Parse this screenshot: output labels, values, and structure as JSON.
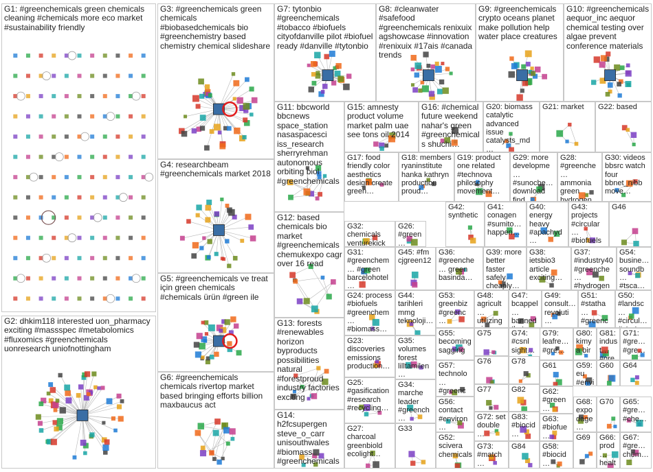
{
  "groups": [
    {
      "id": "G1",
      "text": "G1: #greenchemicals green chemicals cleaning #chemicals more eco market #sustainability friendly",
      "layout": "grid"
    },
    {
      "id": "G2",
      "text": "G2: dhkim118 interested uon_pharmacy exciting #massspec #metabolomics #fluxomics #greenchemicals uonresearch uniofnottingham",
      "layout": "hub"
    },
    {
      "id": "G3",
      "text": "G3: #greenchemicals green chemicals #biobasedchemicals bio #greenchemistry based chemistry chemical slideshare",
      "layout": "hub"
    },
    {
      "id": "G4",
      "text": "G4: researchbeam #greenchemicals market 2018",
      "layout": "hub"
    },
    {
      "id": "G5",
      "text": "G5: #greenchemicals ve treat için green chemicals #chemicals ürün #green ile",
      "layout": "hub"
    },
    {
      "id": "G6",
      "text": "G6: #greenchemicals chemicals rivertop market based bringing efforts billion maxbaucus act",
      "layout": "scatter"
    },
    {
      "id": "G7",
      "text": "G7: tytonbio #greenchemicals #tobacco #biofuels cityofdanville pilot #biofuel ready #danville #tytonbio",
      "layout": "hub"
    },
    {
      "id": "G8",
      "text": "G8: #cleanwater #safefood #greenchemicals renixuix agshowcase #innovation #renixuix #17ais #canada trends",
      "layout": "hub"
    },
    {
      "id": "G9",
      "text": "G9: #greenchemicals crypto oceans planet make pollution help water place creatures",
      "layout": "hub"
    },
    {
      "id": "G10",
      "text": "G10: #greenchemicals aequor_inc aequor chemical testing over algae prevent conference materials",
      "layout": "hub"
    },
    {
      "id": "G11",
      "text": "G11: bbcworld bbcnews space_station nasaspacesci iss_research sherryrehman autonomous orbiting biol #greenchemicals",
      "layout": "scatter"
    },
    {
      "id": "G12",
      "text": "G12: based chemicals bio market #greenchemicals chemukexpo cagr over 16 read",
      "layout": "scatter"
    },
    {
      "id": "G13",
      "text": "G13: forests #renewables horizon byproducts possibilities natural #forestproud industry factories exciting",
      "layout": "scatter"
    },
    {
      "id": "G14",
      "text": "G14: h2fcsupergen steve_o_carr unisouthwales #biomass #greenchemicals…",
      "layout": "scatter"
    },
    {
      "id": "G15",
      "text": "G15: amnesty product volume market palm uae see tons oil 2014",
      "layout": "scatter"
    },
    {
      "id": "G16",
      "text": "G16: #chemical future weekend nahar's green #greenchemicals shuchi…",
      "layout": "scatter"
    },
    {
      "id": "G17",
      "text": "G17: food friendly color aesthetics design create green…",
      "layout": "scatter"
    },
    {
      "id": "G18",
      "text": "G18: members ryaninstitute hanka kathryn production proud…",
      "layout": "scatter"
    },
    {
      "id": "G19",
      "text": "G19: product one related #technova philosophy movement…",
      "layout": "scatter"
    },
    {
      "id": "G20",
      "text": "G20: biomass catalytic advanced issue catalysts_md…",
      "layout": "scatter"
    },
    {
      "id": "G21",
      "text": "G21: market",
      "layout": "scatter"
    },
    {
      "id": "G22",
      "text": "G22: based",
      "layout": "scatter"
    },
    {
      "id": "G23",
      "text": "G23: discoveries emissions production…",
      "layout": "scatter"
    },
    {
      "id": "G24",
      "text": "G24: process #biofuels #greenchem… #biomass…",
      "layout": "scatter"
    },
    {
      "id": "G25",
      "text": "G25: #gasification #research #recycling…",
      "layout": "scatter"
    },
    {
      "id": "G26",
      "text": "G26: #green… greenseal thanks…",
      "layout": "scatter"
    },
    {
      "id": "G27",
      "text": "G27: charcoal greenbiold ecolight…",
      "layout": "scatter"
    },
    {
      "id": "G28",
      "text": "G28: #greenche… ammonia green hydrogen…",
      "layout": "scatter"
    },
    {
      "id": "G29",
      "text": "G29: more developme… #sunoche… download find…",
      "layout": "scatter"
    },
    {
      "id": "G30",
      "text": "G30: videos bbsrc watch four bbnet_nibb move…",
      "layout": "scatter"
    },
    {
      "id": "G31",
      "text": "G31: #greenchem… #green barcelohotel…",
      "layout": "scatter"
    },
    {
      "id": "G32",
      "text": "G32: chemicals venturekick",
      "layout": "scatter"
    },
    {
      "id": "G33",
      "text": "G33",
      "layout": "scatter"
    },
    {
      "id": "G34",
      "text": "G34: marche leader #greench…",
      "layout": "scatter"
    },
    {
      "id": "G35",
      "text": "G35: volumes forest lilltamilen…",
      "layout": "scatter"
    },
    {
      "id": "G36",
      "text": "G36: #greenche… green basinda…",
      "layout": "scatter"
    },
    {
      "id": "G37",
      "text": "G37: #industry40 #greenche… #hydrogen…",
      "layout": "scatter"
    },
    {
      "id": "G38",
      "text": "G38: ietsbio3 article exciting…",
      "layout": "scatter"
    },
    {
      "id": "G39",
      "text": "G39: more better faster safely cheaply…",
      "layout": "scatter"
    },
    {
      "id": "G40",
      "text": "G40: energy heavy #apachyd…",
      "layout": "scatter"
    },
    {
      "id": "G41",
      "text": "G41: conagen #sumito… happen…",
      "layout": "scatter"
    },
    {
      "id": "G42",
      "text": "G42: synthetic",
      "layout": "scatter"
    },
    {
      "id": "G43",
      "text": "G43: projects #circular… #biofuels…",
      "layout": "scatter"
    },
    {
      "id": "G44",
      "text": "G44: tarihleri mmg teknoloji…",
      "layout": "scatter"
    },
    {
      "id": "G45",
      "text": "G45: #fm cjgreen12",
      "layout": "scatter"
    },
    {
      "id": "G46",
      "text": "G46",
      "layout": "scatter"
    },
    {
      "id": "G47",
      "text": "G47: bcappel… banned thats…",
      "layout": "scatter"
    },
    {
      "id": "G48",
      "text": "G48: agricult… utilizing aim…",
      "layout": "scatter"
    },
    {
      "id": "G49",
      "text": "G49: consult… revoluti… prescou…",
      "layout": "scatter"
    },
    {
      "id": "G50",
      "text": "G50: #landsc… #circul… #startu…",
      "layout": "scatter"
    },
    {
      "id": "G51",
      "text": "G51: #statha… #greenc… #greenc…",
      "layout": "scatter"
    },
    {
      "id": "G52",
      "text": "G52: scivera chemicals",
      "layout": "scatter"
    },
    {
      "id": "G53",
      "text": "G53: greenbiz #greenc…",
      "layout": "scatter"
    },
    {
      "id": "G54",
      "text": "G54: busine… soundb… #tsca…",
      "layout": "scatter"
    },
    {
      "id": "G55",
      "text": "G55: becoming sagging…",
      "layout": "scatter"
    },
    {
      "id": "G56",
      "text": "G56: contact #environ…",
      "layout": "scatter"
    },
    {
      "id": "G57",
      "text": "G57: technolo… #greenc…",
      "layout": "scatter"
    },
    {
      "id": "G58",
      "text": "G58: #biocid…",
      "layout": "scatter"
    },
    {
      "id": "G59",
      "text": "G59: eu #envi…",
      "layout": "scatter"
    },
    {
      "id": "G60",
      "text": "G60",
      "layout": "scatter"
    },
    {
      "id": "G61",
      "text": "G61",
      "layout": "scatter"
    },
    {
      "id": "G62",
      "text": "G62: #green…",
      "layout": "scatter"
    },
    {
      "id": "G63",
      "text": "G63: #biofue…",
      "layout": "scatter"
    },
    {
      "id": "G64",
      "text": "G64",
      "layout": "scatter"
    },
    {
      "id": "G65",
      "text": "G65: #gre… #che…",
      "layout": "scatter"
    },
    {
      "id": "G66",
      "text": "G66: prod… healt…",
      "layout": "scatter"
    },
    {
      "id": "G67",
      "text": "G67: #gre… chem…",
      "layout": "scatter"
    },
    {
      "id": "G68",
      "text": "G68: expo dage…",
      "layout": "scatter"
    },
    {
      "id": "G69",
      "text": "G69",
      "layout": "scatter"
    },
    {
      "id": "G70",
      "text": "G70",
      "layout": "scatter"
    },
    {
      "id": "G71",
      "text": "G71: #gre… #gre…",
      "layout": "scatter"
    },
    {
      "id": "G72",
      "text": "G72: set double…",
      "layout": "scatter"
    },
    {
      "id": "G73",
      "text": "G73: #match… barcell…",
      "layout": "scatter"
    },
    {
      "id": "G74",
      "text": "G74: #csnl sight…",
      "layout": "scatter"
    },
    {
      "id": "G75",
      "text": "G75",
      "layout": "scatter"
    },
    {
      "id": "G76",
      "text": "G76",
      "layout": "scatter"
    },
    {
      "id": "G77",
      "text": "G77",
      "layout": "scatter"
    },
    {
      "id": "G78",
      "text": "G78",
      "layout": "scatter"
    },
    {
      "id": "G79",
      "text": "G79: leafre… #gre…",
      "layout": "scatter"
    },
    {
      "id": "G80",
      "text": "G80: kimya bir",
      "layout": "scatter"
    },
    {
      "id": "G81",
      "text": "G81: indust… #gre…",
      "layout": "scatter"
    },
    {
      "id": "G82",
      "text": "G82",
      "layout": "scatter"
    },
    {
      "id": "G83",
      "text": "G83: #biocid…",
      "layout": "scatter"
    },
    {
      "id": "G84",
      "text": "G84",
      "layout": "scatter"
    }
  ]
}
